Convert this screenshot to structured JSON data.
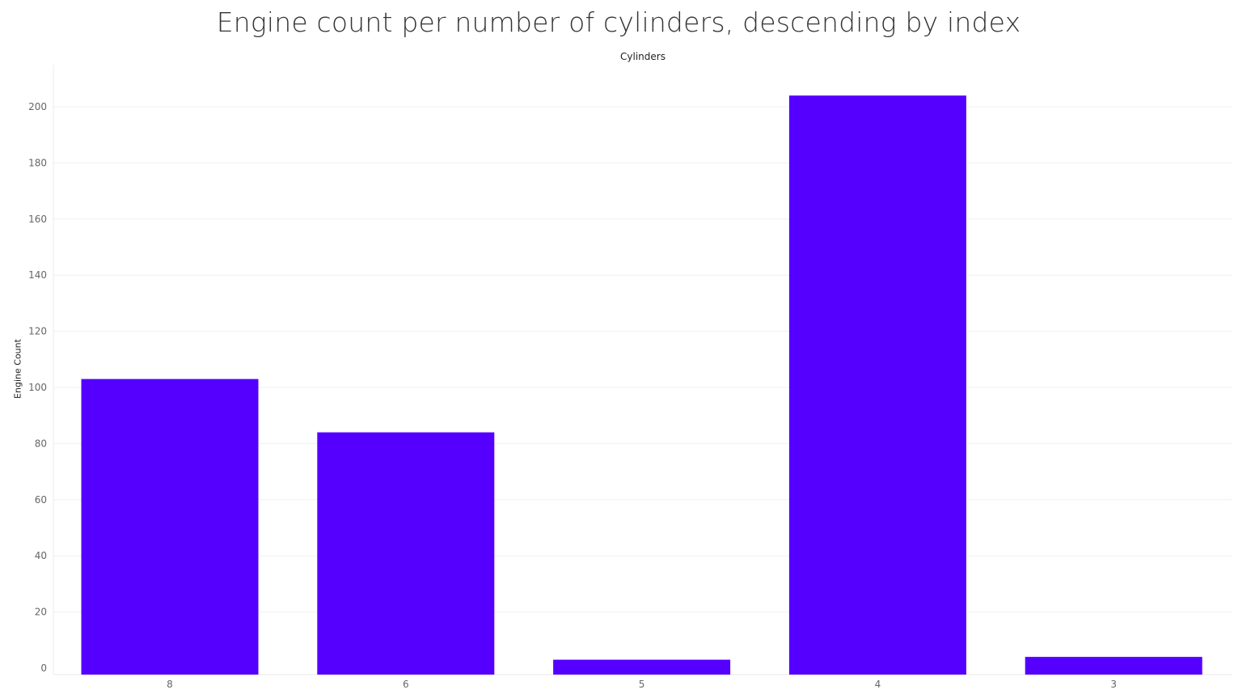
{
  "chart_data": {
    "type": "bar",
    "title": "Engine count per number of cylinders, descending by index",
    "xlabel": "Cylinders",
    "ylabel": "Engine Count",
    "categories": [
      "8",
      "6",
      "5",
      "4",
      "3"
    ],
    "values": [
      103,
      84,
      3,
      204,
      4
    ],
    "ylim": [
      0,
      215
    ],
    "yticks": [
      0,
      20,
      40,
      60,
      80,
      100,
      120,
      140,
      160,
      180,
      200
    ],
    "grid": true,
    "bar_color": "#5500ff"
  }
}
